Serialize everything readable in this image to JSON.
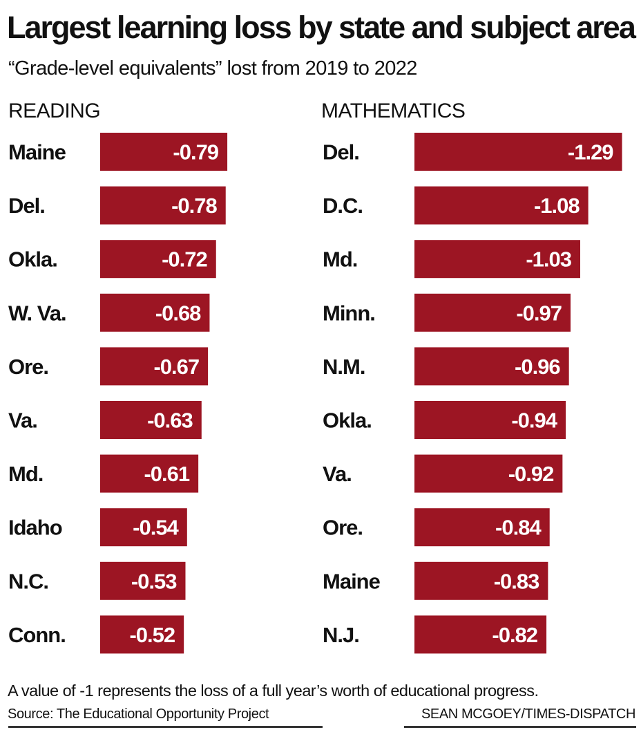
{
  "title": "Largest learning loss by state and subject area",
  "subtitle": "“Grade-level equivalents” lost from 2019 to 2022",
  "footnote": "A value of -1 represents the loss of a full year’s worth of educational progress.",
  "source": "Source: The Educational Opportunity Project",
  "credit": "SEAN MCGOEY/TIMES-DISPATCH",
  "colors": {
    "bar": "#9c1523",
    "bar_label": "#ffffff",
    "text": "#111111"
  },
  "chart_data": [
    {
      "type": "bar",
      "orientation": "horizontal",
      "panel_label": "READING",
      "categories": [
        "Maine",
        "Del.",
        "Okla.",
        "W. Va.",
        "Ore.",
        "Va.",
        "Md.",
        "Idaho",
        "N.C.",
        "Conn."
      ],
      "values": [
        -0.79,
        -0.78,
        -0.72,
        -0.68,
        -0.67,
        -0.63,
        -0.61,
        -0.54,
        -0.53,
        -0.52
      ],
      "labels": [
        "-0.79",
        "-0.78",
        "-0.72",
        "-0.68",
        "-0.67",
        "-0.63",
        "-0.61",
        "-0.54",
        "-0.53",
        "-0.52"
      ]
    },
    {
      "type": "bar",
      "orientation": "horizontal",
      "panel_label": "MATHEMATICS",
      "categories": [
        "Del.",
        "D.C.",
        "Md.",
        "Minn.",
        "N.M.",
        "Okla.",
        "Va.",
        "Ore.",
        "Maine",
        "N.J."
      ],
      "values": [
        -1.29,
        -1.08,
        -1.03,
        -0.97,
        -0.96,
        -0.94,
        -0.92,
        -0.84,
        -0.83,
        -0.82
      ],
      "labels": [
        "-1.29",
        "-1.08",
        "-1.03",
        "-0.97",
        "-0.96",
        "-0.94",
        "-0.92",
        "-0.84",
        "-0.83",
        "-0.82"
      ]
    }
  ]
}
